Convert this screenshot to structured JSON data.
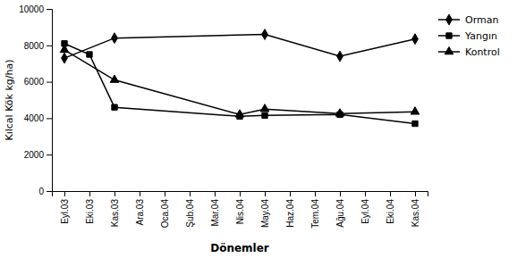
{
  "chart_data": {
    "type": "line",
    "xlabel": "Dönemler",
    "ylabel": "Kılcal Kök kg/ha)",
    "categories": [
      "Eyl.03",
      "Eki.03",
      "Kas.03",
      "Ara.03",
      "Oca.04",
      "Şub.04",
      "Mar.04",
      "Nis.04",
      "May.04",
      "Haz.04",
      "Tem.04",
      "Ağu.04",
      "Eyl.04",
      "Eki.04",
      "Kas.04"
    ],
    "series": [
      {
        "name": "Orman",
        "color": "#000000",
        "marker": "diamond",
        "x": [
          "Eyl.03",
          "Kas.03",
          "May.04",
          "Ağu.04",
          "Kas.04"
        ],
        "values": [
          7300,
          8400,
          8600,
          7400,
          8350
        ]
      },
      {
        "name": "Yangın",
        "color": "#000000",
        "marker": "square",
        "x": [
          "Eyl.03",
          "Eki.03",
          "Kas.03",
          "Nis.04",
          "May.04",
          "Ağu.04",
          "Kas.04"
        ],
        "values": [
          8100,
          7500,
          4600,
          4100,
          4150,
          4200,
          3700
        ]
      },
      {
        "name": "Kontrol",
        "color": "#000000",
        "marker": "triangle",
        "x": [
          "Eyl.03",
          "Kas.03",
          "Nis.04",
          "May.04",
          "Ağu.04",
          "Kas.04"
        ],
        "values": [
          7750,
          6100,
          4200,
          4500,
          4250,
          4350
        ]
      }
    ],
    "ylim": [
      0,
      10000
    ],
    "yticks": [
      0,
      2000,
      4000,
      6000,
      8000,
      10000
    ],
    "grid": false,
    "legend": "upper right"
  }
}
